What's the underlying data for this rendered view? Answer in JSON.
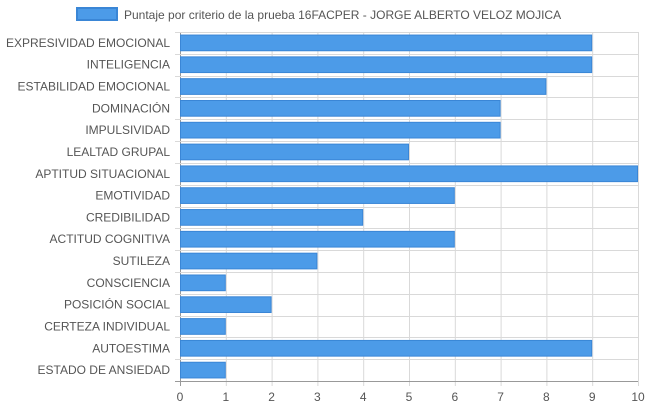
{
  "chart_data": {
    "type": "bar",
    "orientation": "horizontal",
    "categories": [
      "EXPRESIVIDAD EMOCIONAL",
      "INTELIGENCIA",
      "ESTABILIDAD EMOCIONAL",
      "DOMINACIÓN",
      "IMPULSIVIDAD",
      "LEALTAD GRUPAL",
      "APTITUD SITUACIONAL",
      "EMOTIVIDAD",
      "CREDIBILIDAD",
      "ACTITUD COGNITIVA",
      "SUTILEZA",
      "CONSCIENCIA",
      "POSICIÓN SOCIAL",
      "CERTEZA INDIVIDUAL",
      "AUTOESTIMA",
      "ESTADO DE ANSIEDAD"
    ],
    "series": [
      {
        "name": "Puntaje por criterio de la prueba 16FACPER - JORGE ALBERTO VELOZ MOJICA",
        "values": [
          9,
          9,
          8,
          7,
          7,
          5,
          10,
          6,
          4,
          6,
          3,
          1,
          2,
          1,
          9,
          1
        ]
      }
    ],
    "xlim": [
      0,
      10
    ],
    "x_ticks": [
      "0",
      "1",
      "2",
      "3",
      "4",
      "5",
      "6",
      "7",
      "8",
      "9",
      "10"
    ],
    "grid": true,
    "legend_position": "top",
    "colors": {
      "bar_fill": "#4c9be8",
      "bar_stroke": "#3a86d6",
      "grid": "#d9d9d9",
      "axis": "#999999",
      "text": "#555555"
    }
  }
}
